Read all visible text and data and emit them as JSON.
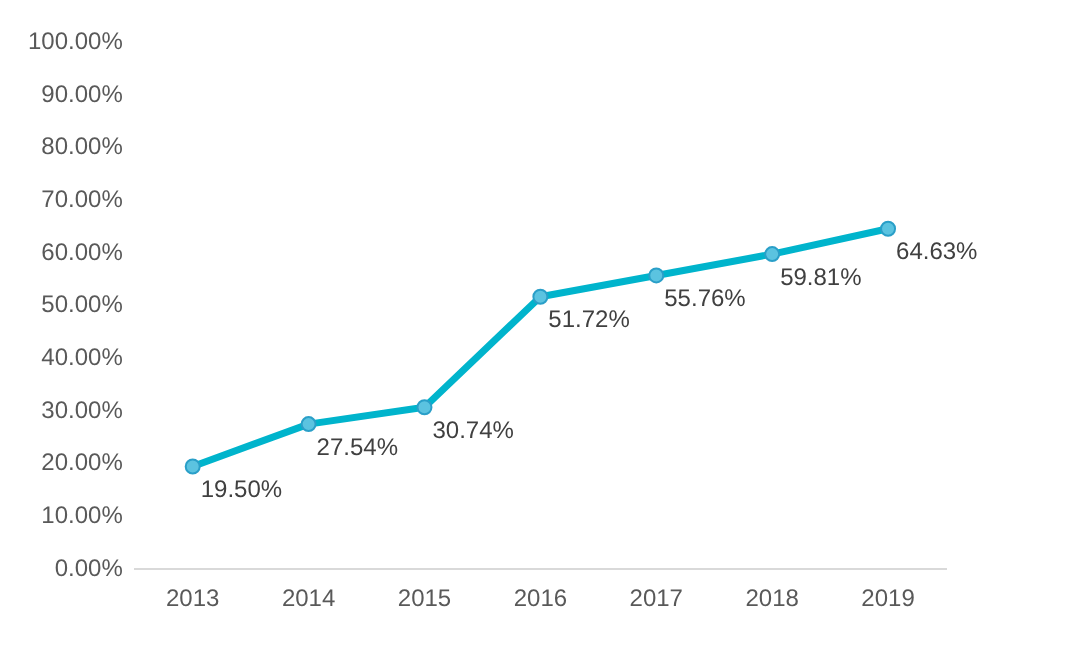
{
  "chart_data": {
    "type": "line",
    "categories": [
      "2013",
      "2014",
      "2015",
      "2016",
      "2017",
      "2018",
      "2019"
    ],
    "series": [
      {
        "color": "#00b4cc",
        "values": [
          19.5,
          27.54,
          30.74,
          51.72,
          55.76,
          59.81,
          64.63
        ],
        "value_labels": [
          "19.50%",
          "27.54%",
          "30.74%",
          "51.72%",
          "55.76%",
          "59.81%",
          "64.63%"
        ]
      }
    ],
    "ylim": [
      0,
      100
    ],
    "yticks": [
      {
        "value": 0,
        "label": "0.00%"
      },
      {
        "value": 10,
        "label": "10.00%"
      },
      {
        "value": 20,
        "label": "20.00%"
      },
      {
        "value": 30,
        "label": "30.00%"
      },
      {
        "value": 40,
        "label": "40.00%"
      },
      {
        "value": 50,
        "label": "50.00%"
      },
      {
        "value": 60,
        "label": "60.00%"
      },
      {
        "value": 70,
        "label": "70.00%"
      },
      {
        "value": 80,
        "label": "80.00%"
      },
      {
        "value": 90,
        "label": "90.00%"
      },
      {
        "value": 100,
        "label": "100.00%"
      }
    ],
    "grid": false,
    "legend": false,
    "marker": "circle",
    "line_style": "solid"
  }
}
